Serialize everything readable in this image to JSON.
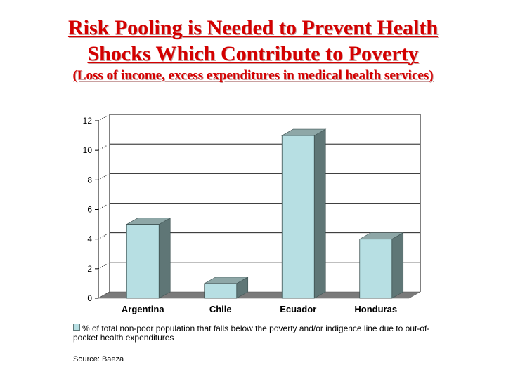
{
  "slide": {
    "title_line1": "Risk Pooling is Needed to Prevent Health",
    "title_line2": "Shocks Which Contribute to Poverty",
    "subtitle": "(Loss of income, excess expenditures in medical health services)",
    "source": "Source:  Baeza"
  },
  "chart_data": {
    "type": "bar",
    "categories": [
      "Argentina",
      "Chile",
      "Ecuador",
      "Honduras"
    ],
    "values": [
      5,
      1,
      11,
      4
    ],
    "title": "",
    "xlabel": "",
    "ylabel": "",
    "ylim": [
      0,
      12
    ],
    "yticks": [
      "0",
      "2",
      "4",
      "6",
      "8",
      "10",
      "12"
    ],
    "legend": "% of total non-poor population that falls below the poverty and/or indigence line due to out-of-pocket health expenditures",
    "legend_position": "bottom",
    "colors": {
      "bar_front": "#b7dfe3",
      "bar_side": "#5f7676",
      "bar_top": "#8ea7a7",
      "floor": "#7a7a7a"
    }
  }
}
